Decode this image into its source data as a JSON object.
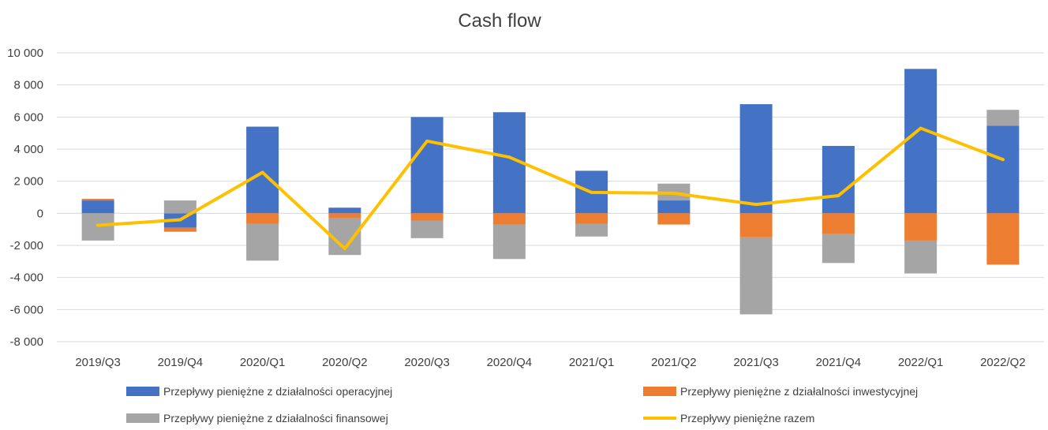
{
  "chart_data": {
    "type": "bar",
    "title": "Cash flow",
    "categories": [
      "2019/Q3",
      "2019/Q4",
      "2020/Q1",
      "2020/Q2",
      "2020/Q3",
      "2020/Q4",
      "2021/Q1",
      "2021/Q2",
      "2021/Q3",
      "2021/Q4",
      "2022/Q1",
      "2022/Q2"
    ],
    "ylim": [
      -8000,
      10000
    ],
    "yticks": [
      10000,
      8000,
      6000,
      4000,
      2000,
      0,
      -2000,
      -4000,
      -6000,
      -8000
    ],
    "ytick_labels": [
      "10 000",
      "8 000",
      "6 000",
      "4 000",
      "2 000",
      "0",
      "-2 000",
      "-4 000",
      "-6 000",
      "-8 000"
    ],
    "grid": true,
    "legend_position": "bottom",
    "series": [
      {
        "name": "Przepływy pieniężne z działalności operacyjnej",
        "kind": "bar",
        "color": "#4472c4",
        "values": [
          800,
          -900,
          5400,
          350,
          6000,
          6300,
          2650,
          800,
          6800,
          4200,
          9000,
          5450
        ]
      },
      {
        "name": "Przepływy pieniężne z działalności inwestycyjnej",
        "kind": "bar",
        "color": "#ed7d31",
        "values": [
          100,
          -250,
          -650,
          -300,
          -450,
          -700,
          -650,
          -700,
          -1500,
          -1300,
          -1700,
          -3200
        ]
      },
      {
        "name": "Przepływy pieniężne z działalności finansowej",
        "kind": "bar",
        "color": "#a5a5a5",
        "values": [
          -1700,
          800,
          -2300,
          -2300,
          -1100,
          -2150,
          -800,
          1050,
          -4800,
          -1800,
          -2050,
          1000
        ]
      },
      {
        "name": "Przepływy pieniężne razem",
        "kind": "line",
        "color": "#ffc000",
        "values": [
          -750,
          -400,
          2550,
          -2200,
          4500,
          3500,
          1300,
          1250,
          550,
          1100,
          5300,
          3350
        ]
      }
    ]
  }
}
